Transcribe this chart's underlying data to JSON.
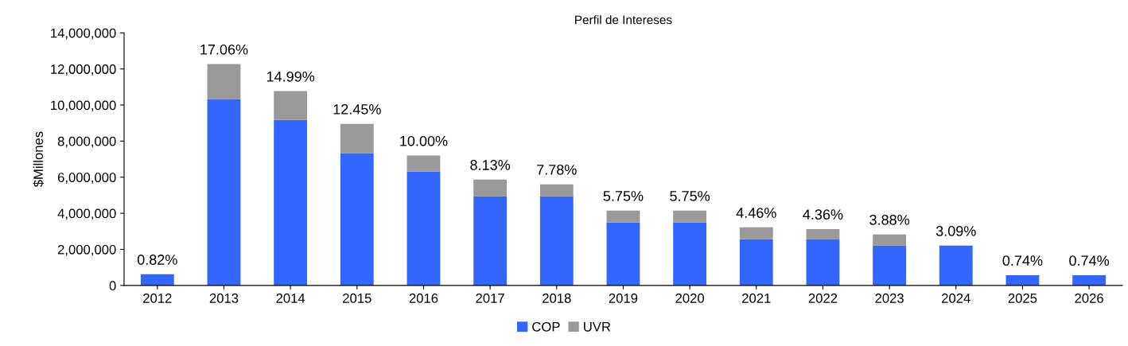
{
  "chart_data": {
    "type": "bar",
    "title": "Perfil de Intereses",
    "ylabel": "$Millones",
    "stacked": true,
    "categories": [
      "2012",
      "2013",
      "2014",
      "2015",
      "2016",
      "2017",
      "2018",
      "2019",
      "2020",
      "2021",
      "2022",
      "2023",
      "2024",
      "2025",
      "2026"
    ],
    "series": [
      {
        "name": "COP",
        "color": "#3366ff",
        "values": [
          620000,
          10330000,
          9180000,
          7330000,
          6310000,
          4940000,
          4940000,
          3490000,
          3490000,
          2560000,
          2560000,
          2210000,
          2210000,
          570000,
          570000
        ]
      },
      {
        "name": "UVR",
        "color": "#999999",
        "values": [
          0,
          1940000,
          1590000,
          1630000,
          890000,
          930000,
          670000,
          660000,
          660000,
          660000,
          570000,
          620000,
          0,
          0,
          0
        ]
      }
    ],
    "ylim": [
      0,
      14000000
    ],
    "yticks": [
      {
        "value": 0,
        "label": "0"
      },
      {
        "value": 2000000,
        "label": "2,000,000"
      },
      {
        "value": 4000000,
        "label": "4,000,000"
      },
      {
        "value": 6000000,
        "label": "6,000,000"
      },
      {
        "value": 8000000,
        "label": "8,000,000"
      },
      {
        "value": 10000000,
        "label": "10,000,000"
      },
      {
        "value": 12000000,
        "label": "12,000,000"
      },
      {
        "value": 14000000,
        "label": "14,000,000"
      }
    ],
    "annotations": [
      {
        "text": "0.82%",
        "x": "2012",
        "y": 620000
      },
      {
        "text": "17.06%",
        "x": "2013",
        "y": 12270000
      },
      {
        "text": "14.99%",
        "x": "2014",
        "y": 10770000
      },
      {
        "text": "12.45%",
        "x": "2015",
        "y": 8960000
      },
      {
        "text": "10.00%",
        "x": "2016",
        "y": 7200000
      },
      {
        "text": "8.13%",
        "x": "2017",
        "y": 5870000
      },
      {
        "text": "7.78%",
        "x": "2018",
        "y": 5610000
      },
      {
        "text": "5.75%",
        "x": "2019",
        "y": 4150000
      },
      {
        "text": "5.75%",
        "x": "2020",
        "y": 4150000
      },
      {
        "text": "4.46%",
        "x": "2021",
        "y": 3220000
      },
      {
        "text": "4.36%",
        "x": "2022",
        "y": 3130000
      },
      {
        "text": "3.88%",
        "x": "2023",
        "y": 2830000
      },
      {
        "text": "3.09%",
        "x": "2024",
        "y": 2210000
      },
      {
        "text": "0.74%",
        "x": "2025",
        "y": 570000
      },
      {
        "text": "0.74%",
        "x": "2026",
        "y": 570000
      }
    ],
    "grid": false,
    "legend": "bottom"
  }
}
